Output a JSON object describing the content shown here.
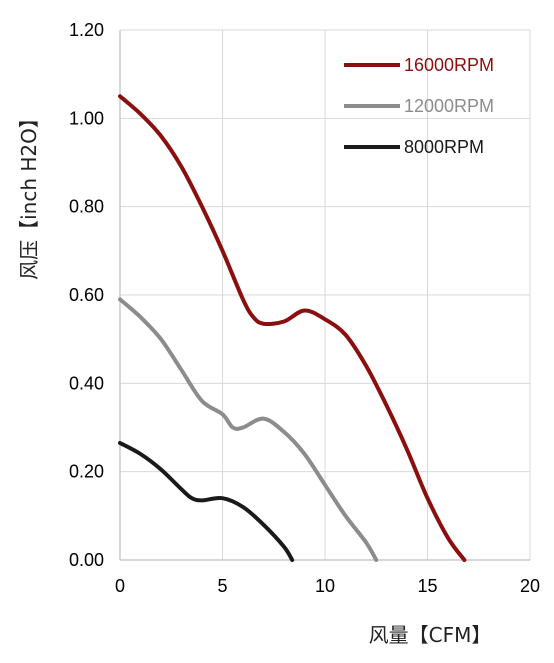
{
  "chart_data": {
    "type": "line",
    "title": "",
    "xlabel": "风量【CFM】",
    "ylabel": "风压【inch H2O】",
    "xlim": [
      0,
      20
    ],
    "ylim": [
      0,
      1.2
    ],
    "x_ticks": [
      "0",
      "5",
      "10",
      "15",
      "20"
    ],
    "y_ticks": [
      "0.00",
      "0.20",
      "0.40",
      "0.60",
      "0.80",
      "1.00",
      "1.20"
    ],
    "grid": true,
    "legend_position": "top-right",
    "series": [
      {
        "name": "16000RPM",
        "color": "#8b0f0f",
        "points": [
          [
            0,
            1.05
          ],
          [
            1,
            1.01
          ],
          [
            2,
            0.96
          ],
          [
            3,
            0.89
          ],
          [
            4,
            0.8
          ],
          [
            5,
            0.7
          ],
          [
            6,
            0.59
          ],
          [
            6.5,
            0.55
          ],
          [
            7,
            0.535
          ],
          [
            8,
            0.54
          ],
          [
            9,
            0.565
          ],
          [
            10,
            0.545
          ],
          [
            11,
            0.51
          ],
          [
            12,
            0.44
          ],
          [
            13,
            0.35
          ],
          [
            14,
            0.25
          ],
          [
            15,
            0.14
          ],
          [
            16,
            0.05
          ],
          [
            16.8,
            0
          ]
        ]
      },
      {
        "name": "12000RPM",
        "color": "#8c8c8c",
        "points": [
          [
            0,
            0.59
          ],
          [
            1,
            0.55
          ],
          [
            2,
            0.5
          ],
          [
            3,
            0.43
          ],
          [
            4,
            0.36
          ],
          [
            5,
            0.33
          ],
          [
            5.5,
            0.3
          ],
          [
            6,
            0.3
          ],
          [
            7,
            0.32
          ],
          [
            8,
            0.29
          ],
          [
            9,
            0.24
          ],
          [
            10,
            0.17
          ],
          [
            11,
            0.1
          ],
          [
            12,
            0.04
          ],
          [
            12.5,
            0
          ]
        ]
      },
      {
        "name": "8000RPM",
        "color": "#1a1a1a",
        "points": [
          [
            0,
            0.265
          ],
          [
            1,
            0.24
          ],
          [
            2,
            0.205
          ],
          [
            3,
            0.16
          ],
          [
            3.5,
            0.14
          ],
          [
            4,
            0.135
          ],
          [
            5,
            0.14
          ],
          [
            6,
            0.12
          ],
          [
            7,
            0.08
          ],
          [
            8,
            0.03
          ],
          [
            8.4,
            0
          ]
        ]
      }
    ]
  }
}
